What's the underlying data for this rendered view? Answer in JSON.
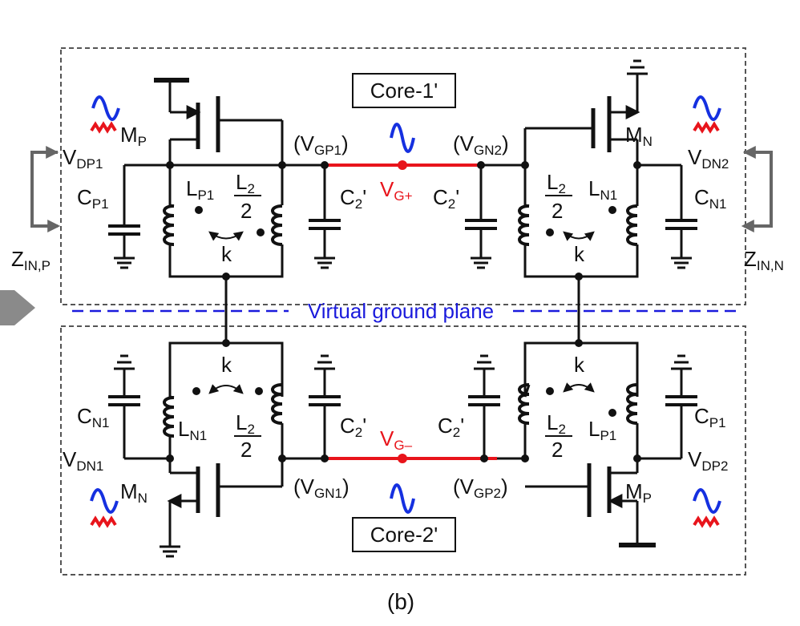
{
  "diagram": {
    "caption": "(b)",
    "plane_label": "Virtual ground plane",
    "core_top": "Core-1'",
    "core_bottom": "Core-2'",
    "z_left": {
      "main": "Z",
      "sub": "IN,P"
    },
    "z_right": {
      "main": "Z",
      "sub": "IN,N"
    },
    "top": {
      "mp": {
        "main": "M",
        "sub": "P"
      },
      "mn": {
        "main": "M",
        "sub": "N"
      },
      "vdp1": {
        "main": "V",
        "sub": "DP1"
      },
      "vdn2": {
        "main": "V",
        "sub": "DN2"
      },
      "cp1": {
        "main": "C",
        "sub": "P1"
      },
      "cn1": {
        "main": "C",
        "sub": "N1"
      },
      "lp1": {
        "main": "L",
        "sub": "P1"
      },
      "ln1": {
        "main": "L",
        "sub": "N1"
      },
      "vgp1": {
        "pre": "(V",
        "sub": "GP1",
        "post": ")"
      },
      "vgn2": {
        "pre": "(V",
        "sub": "GN2",
        "post": ")"
      },
      "vg": {
        "main": "V",
        "sub": "G+"
      },
      "c2": "C",
      "c2sub": "2",
      "c2prime": "'",
      "l2num": "L",
      "l2numsub": "2",
      "l2den": "2",
      "k": "k"
    },
    "bottom": {
      "mn": {
        "main": "M",
        "sub": "N"
      },
      "mp": {
        "main": "M",
        "sub": "P"
      },
      "vdn1": {
        "main": "V",
        "sub": "DN1"
      },
      "vdp2": {
        "main": "V",
        "sub": "DP2"
      },
      "cn1": {
        "main": "C",
        "sub": "N1"
      },
      "cp1": {
        "main": "C",
        "sub": "P1"
      },
      "ln1": {
        "main": "L",
        "sub": "N1"
      },
      "lp1": {
        "main": "L",
        "sub": "P1"
      },
      "vgn1": {
        "pre": "(V",
        "sub": "GN1",
        "post": ")"
      },
      "vgp2": {
        "pre": "(V",
        "sub": "GP2",
        "post": ")"
      },
      "vg": {
        "main": "V",
        "sub": "G–"
      },
      "c2": "C",
      "c2sub": "2",
      "c2prime": "'",
      "l2num": "L",
      "l2numsub": "2",
      "l2den": "2",
      "k": "k"
    },
    "colors": {
      "wire": "#111111",
      "vg_wire": "#e8141b",
      "vg_label": "#e8141b",
      "plane": "#1a1adc",
      "wave_blue": "#1530e0",
      "wave_red": "#e8141b",
      "box": "#555555",
      "arrow": "#666666"
    }
  }
}
